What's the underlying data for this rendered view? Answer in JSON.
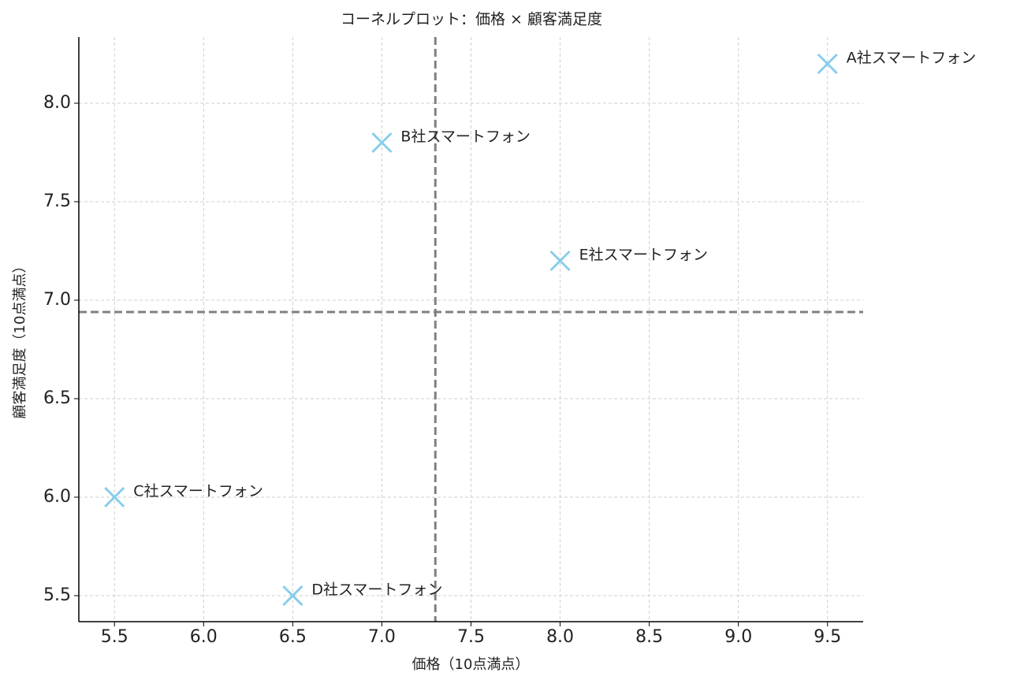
{
  "chart_data": {
    "type": "scatter",
    "title": "コーネルプロット：価格 × 顧客満足度",
    "xlabel": "価格（10点満点）",
    "ylabel": "顧客満足度（10点満点）",
    "series": [
      {
        "color": "#87ceeb",
        "labels": [
          "A社スマートフォン",
          "B社スマートフォン",
          "C社スマートフォン",
          "D社スマートフォン",
          "E社スマートフォン"
        ],
        "x": [
          9.5,
          7.0,
          5.5,
          6.5,
          8.0
        ],
        "values": [
          8.2,
          7.8,
          6.0,
          5.5,
          7.2
        ]
      }
    ],
    "vline": 7.3,
    "hline": 6.94,
    "line_color": "#808080",
    "xlim": [
      5.3,
      9.7
    ],
    "ylim": [
      5.368,
      8.336
    ],
    "xticks": [
      5.5,
      {
        "value": 6,
        "label": "6.0"
      },
      6.5,
      {
        "value": 7,
        "label": "7.0"
      },
      7.5,
      {
        "value": 8,
        "label": "8.0"
      },
      8.5,
      {
        "value": 9,
        "label": "9.0"
      },
      9.5
    ],
    "yticks": [
      5.5,
      {
        "value": 6,
        "label": "6.0"
      },
      6.5,
      {
        "value": 7,
        "label": "7.0"
      },
      7.5,
      {
        "value": 8,
        "label": "8.0"
      }
    ],
    "grid": true
  }
}
